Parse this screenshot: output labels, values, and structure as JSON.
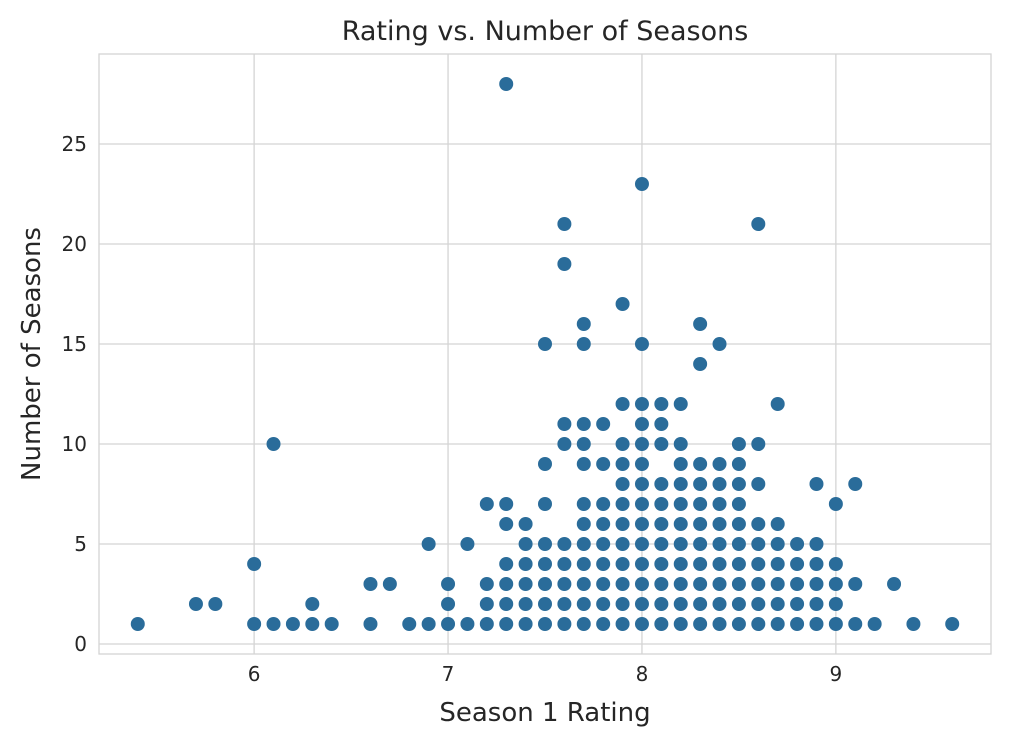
{
  "chart_data": {
    "type": "scatter",
    "title": "Rating vs. Number of Seasons",
    "xlabel": "Season 1 Rating",
    "ylabel": "Number of Seasons",
    "xlim": [
      5.2,
      9.8
    ],
    "ylim": [
      -0.5,
      29.5
    ],
    "xticks": [
      6,
      7,
      8,
      9
    ],
    "yticks": [
      0,
      5,
      10,
      15,
      20,
      25
    ],
    "grid": true,
    "point_color": "#2a6c9a",
    "series": [
      {
        "points": [
          [
            5.4,
            1
          ],
          [
            5.7,
            2
          ],
          [
            5.8,
            2
          ],
          [
            6.0,
            1
          ],
          [
            6.0,
            4
          ],
          [
            6.1,
            1
          ],
          [
            6.1,
            10
          ],
          [
            6.2,
            1
          ],
          [
            6.3,
            1
          ],
          [
            6.3,
            2
          ],
          [
            6.4,
            1
          ],
          [
            6.6,
            1
          ],
          [
            6.6,
            3
          ],
          [
            6.7,
            3
          ],
          [
            6.8,
            1
          ],
          [
            6.9,
            1
          ],
          [
            6.9,
            5
          ],
          [
            7.0,
            1
          ],
          [
            7.0,
            2
          ],
          [
            7.0,
            3
          ],
          [
            7.1,
            1
          ],
          [
            7.1,
            5
          ],
          [
            7.2,
            1
          ],
          [
            7.2,
            2
          ],
          [
            7.2,
            3
          ],
          [
            7.2,
            7
          ],
          [
            7.3,
            1
          ],
          [
            7.3,
            2
          ],
          [
            7.3,
            3
          ],
          [
            7.3,
            4
          ],
          [
            7.3,
            6
          ],
          [
            7.3,
            7
          ],
          [
            7.3,
            28
          ],
          [
            7.4,
            1
          ],
          [
            7.4,
            2
          ],
          [
            7.4,
            3
          ],
          [
            7.4,
            4
          ],
          [
            7.4,
            5
          ],
          [
            7.4,
            6
          ],
          [
            7.5,
            1
          ],
          [
            7.5,
            2
          ],
          [
            7.5,
            3
          ],
          [
            7.5,
            4
          ],
          [
            7.5,
            5
          ],
          [
            7.5,
            7
          ],
          [
            7.5,
            9
          ],
          [
            7.5,
            15
          ],
          [
            7.6,
            1
          ],
          [
            7.6,
            2
          ],
          [
            7.6,
            3
          ],
          [
            7.6,
            4
          ],
          [
            7.6,
            5
          ],
          [
            7.6,
            10
          ],
          [
            7.6,
            11
          ],
          [
            7.6,
            19
          ],
          [
            7.6,
            21
          ],
          [
            7.7,
            1
          ],
          [
            7.7,
            2
          ],
          [
            7.7,
            3
          ],
          [
            7.7,
            4
          ],
          [
            7.7,
            5
          ],
          [
            7.7,
            6
          ],
          [
            7.7,
            7
          ],
          [
            7.7,
            9
          ],
          [
            7.7,
            10
          ],
          [
            7.7,
            11
          ],
          [
            7.7,
            15
          ],
          [
            7.7,
            16
          ],
          [
            7.8,
            1
          ],
          [
            7.8,
            2
          ],
          [
            7.8,
            3
          ],
          [
            7.8,
            4
          ],
          [
            7.8,
            5
          ],
          [
            7.8,
            6
          ],
          [
            7.8,
            7
          ],
          [
            7.8,
            9
          ],
          [
            7.8,
            11
          ],
          [
            7.9,
            1
          ],
          [
            7.9,
            2
          ],
          [
            7.9,
            3
          ],
          [
            7.9,
            4
          ],
          [
            7.9,
            5
          ],
          [
            7.9,
            6
          ],
          [
            7.9,
            7
          ],
          [
            7.9,
            8
          ],
          [
            7.9,
            9
          ],
          [
            7.9,
            10
          ],
          [
            7.9,
            12
          ],
          [
            7.9,
            17
          ],
          [
            8.0,
            1
          ],
          [
            8.0,
            2
          ],
          [
            8.0,
            3
          ],
          [
            8.0,
            4
          ],
          [
            8.0,
            5
          ],
          [
            8.0,
            6
          ],
          [
            8.0,
            7
          ],
          [
            8.0,
            8
          ],
          [
            8.0,
            9
          ],
          [
            8.0,
            10
          ],
          [
            8.0,
            11
          ],
          [
            8.0,
            12
          ],
          [
            8.0,
            15
          ],
          [
            8.0,
            23
          ],
          [
            8.1,
            1
          ],
          [
            8.1,
            2
          ],
          [
            8.1,
            3
          ],
          [
            8.1,
            4
          ],
          [
            8.1,
            5
          ],
          [
            8.1,
            6
          ],
          [
            8.1,
            7
          ],
          [
            8.1,
            8
          ],
          [
            8.1,
            10
          ],
          [
            8.1,
            11
          ],
          [
            8.1,
            12
          ],
          [
            8.2,
            1
          ],
          [
            8.2,
            2
          ],
          [
            8.2,
            3
          ],
          [
            8.2,
            4
          ],
          [
            8.2,
            5
          ],
          [
            8.2,
            6
          ],
          [
            8.2,
            7
          ],
          [
            8.2,
            8
          ],
          [
            8.2,
            9
          ],
          [
            8.2,
            10
          ],
          [
            8.2,
            12
          ],
          [
            8.3,
            1
          ],
          [
            8.3,
            2
          ],
          [
            8.3,
            3
          ],
          [
            8.3,
            4
          ],
          [
            8.3,
            5
          ],
          [
            8.3,
            6
          ],
          [
            8.3,
            7
          ],
          [
            8.3,
            8
          ],
          [
            8.3,
            9
          ],
          [
            8.3,
            14
          ],
          [
            8.3,
            16
          ],
          [
            8.4,
            1
          ],
          [
            8.4,
            2
          ],
          [
            8.4,
            3
          ],
          [
            8.4,
            4
          ],
          [
            8.4,
            5
          ],
          [
            8.4,
            6
          ],
          [
            8.4,
            7
          ],
          [
            8.4,
            8
          ],
          [
            8.4,
            9
          ],
          [
            8.4,
            15
          ],
          [
            8.5,
            1
          ],
          [
            8.5,
            2
          ],
          [
            8.5,
            3
          ],
          [
            8.5,
            4
          ],
          [
            8.5,
            5
          ],
          [
            8.5,
            6
          ],
          [
            8.5,
            7
          ],
          [
            8.5,
            8
          ],
          [
            8.5,
            9
          ],
          [
            8.5,
            10
          ],
          [
            8.6,
            1
          ],
          [
            8.6,
            2
          ],
          [
            8.6,
            3
          ],
          [
            8.6,
            4
          ],
          [
            8.6,
            5
          ],
          [
            8.6,
            6
          ],
          [
            8.6,
            8
          ],
          [
            8.6,
            10
          ],
          [
            8.6,
            21
          ],
          [
            8.7,
            1
          ],
          [
            8.7,
            2
          ],
          [
            8.7,
            3
          ],
          [
            8.7,
            4
          ],
          [
            8.7,
            5
          ],
          [
            8.7,
            6
          ],
          [
            8.7,
            12
          ],
          [
            8.8,
            1
          ],
          [
            8.8,
            2
          ],
          [
            8.8,
            3
          ],
          [
            8.8,
            4
          ],
          [
            8.8,
            5
          ],
          [
            8.9,
            1
          ],
          [
            8.9,
            2
          ],
          [
            8.9,
            3
          ],
          [
            8.9,
            4
          ],
          [
            8.9,
            5
          ],
          [
            8.9,
            8
          ],
          [
            9.0,
            1
          ],
          [
            9.0,
            2
          ],
          [
            9.0,
            3
          ],
          [
            9.0,
            4
          ],
          [
            9.0,
            7
          ],
          [
            9.1,
            1
          ],
          [
            9.1,
            3
          ],
          [
            9.1,
            8
          ],
          [
            9.2,
            1
          ],
          [
            9.3,
            3
          ],
          [
            9.4,
            1
          ],
          [
            9.6,
            1
          ]
        ]
      }
    ]
  }
}
